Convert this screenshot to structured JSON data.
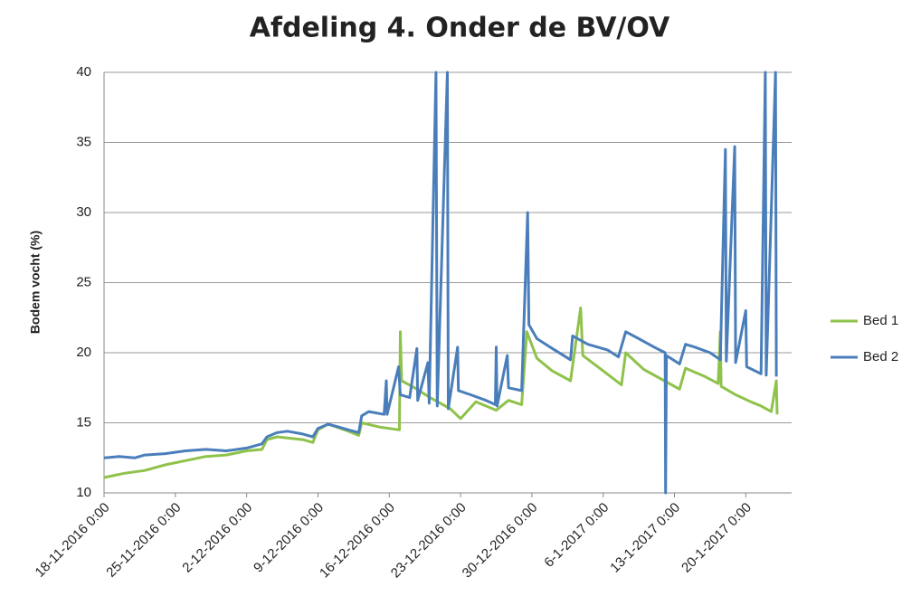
{
  "chart_data": {
    "type": "line",
    "title": "Afdeling 4. Onder de BV/OV",
    "y_label": "Bodem vocht (%)",
    "xlim": [
      "2016-11-18 00:00",
      "2017-01-24 12:00"
    ],
    "xticks": [
      {
        "value": "2016-11-18 00:00",
        "label": "18-11-2016 0:00"
      },
      {
        "value": "2016-11-25 00:00",
        "label": "25-11-2016 0:00"
      },
      {
        "value": "2016-12-02 00:00",
        "label": "2-12-2016 0:00"
      },
      {
        "value": "2016-12-09 00:00",
        "label": "9-12-2016 0:00"
      },
      {
        "value": "2016-12-16 00:00",
        "label": "16-12-2016 0:00"
      },
      {
        "value": "2016-12-23 00:00",
        "label": "23-12-2016 0:00"
      },
      {
        "value": "2016-12-30 00:00",
        "label": "30-12-2016 0:00"
      },
      {
        "value": "2017-01-06 00:00",
        "label": "6-1-2017 0:00"
      },
      {
        "value": "2017-01-13 00:00",
        "label": "13-1-2017 0:00"
      },
      {
        "value": "2017-01-20 00:00",
        "label": "20-1-2017 0:00"
      }
    ],
    "ylim": [
      10,
      40
    ],
    "yticks": [
      10,
      15,
      20,
      25,
      30,
      35,
      40
    ],
    "grid": true,
    "legend": "right",
    "series": [
      {
        "name": "Bed 1",
        "color": "#8fc24a",
        "x": [
          "2016-11-18 00:00",
          "2016-11-20 00:00",
          "2016-11-22 00:00",
          "2016-11-24 00:00",
          "2016-11-26 00:00",
          "2016-11-28 00:00",
          "2016-11-30 00:00",
          "2016-12-02 00:00",
          "2016-12-03 12:00",
          "2016-12-04 00:00",
          "2016-12-05 00:00",
          "2016-12-07 12:00",
          "2016-12-08 12:00",
          "2016-12-09 00:00",
          "2016-12-10 00:00",
          "2016-12-12 00:00",
          "2016-12-13 00:00",
          "2016-12-13 07:00",
          "2016-12-15 00:00",
          "2016-12-17 00:00",
          "2016-12-17 02:00",
          "2016-12-17 05:00",
          "2016-12-18 12:00",
          "2016-12-20 00:00",
          "2016-12-22 00:00",
          "2016-12-23 00:00",
          "2016-12-24 12:00",
          "2016-12-26 12:00",
          "2016-12-27 17:00",
          "2016-12-29 00:00",
          "2016-12-29 12:00",
          "2016-12-30 12:00",
          "2017-01-01 00:00",
          "2017-01-02 19:00",
          "2017-01-03 19:00",
          "2017-01-04 00:00",
          "2017-01-06 00:00",
          "2017-01-07 19:00",
          "2017-01-08 05:00",
          "2017-01-10 00:00",
          "2017-01-12 00:00",
          "2017-01-13 12:00",
          "2017-01-14 02:00",
          "2017-01-16 00:00",
          "2017-01-17 07:00",
          "2017-01-17 12:00",
          "2017-01-17 14:00",
          "2017-01-19 00:00",
          "2017-01-20 12:00",
          "2017-01-21 12:00",
          "2017-01-22 12:00",
          "2017-01-23 00:00",
          "2017-01-23 02:00"
        ],
        "values": [
          11.1,
          11.4,
          11.6,
          12.0,
          12.3,
          12.6,
          12.7,
          13.0,
          13.1,
          13.8,
          14.0,
          13.8,
          13.6,
          14.5,
          14.9,
          14.4,
          14.1,
          15.0,
          14.7,
          14.5,
          21.5,
          18.0,
          17.5,
          16.8,
          16.0,
          15.3,
          16.5,
          15.9,
          16.6,
          16.3,
          21.5,
          19.6,
          18.7,
          18.0,
          23.2,
          19.8,
          18.7,
          17.7,
          20.0,
          18.8,
          18.0,
          17.4,
          18.9,
          18.3,
          17.8,
          21.5,
          17.6,
          17.0,
          16.5,
          16.2,
          15.8,
          18.0,
          15.6
        ]
      },
      {
        "name": "Bed 2",
        "color": "#4a7ebb",
        "x": [
          "2016-11-18 00:00",
          "2016-11-19 12:00",
          "2016-11-21 00:00",
          "2016-11-22 00:00",
          "2016-11-24 00:00",
          "2016-11-26 00:00",
          "2016-11-28 00:00",
          "2016-11-30 00:00",
          "2016-12-02 00:00",
          "2016-12-03 12:00",
          "2016-12-04 00:00",
          "2016-12-05 00:00",
          "2016-12-06 00:00",
          "2016-12-07 12:00",
          "2016-12-08 12:00",
          "2016-12-09 00:00",
          "2016-12-10 00:00",
          "2016-12-11 00:00",
          "2016-12-12 00:00",
          "2016-12-13 00:00",
          "2016-12-13 07:00",
          "2016-12-14 00:00",
          "2016-12-15 12:00",
          "2016-12-15 17:00",
          "2016-12-15 19:00",
          "2016-12-16 22:00",
          "2016-12-17 02:00",
          "2016-12-18 00:00",
          "2016-12-18 17:00",
          "2016-12-18 19:00",
          "2016-12-19 19:00",
          "2016-12-19 22:00",
          "2016-12-20 14:00",
          "2016-12-20 17:00",
          "2016-12-21 17:00",
          "2016-12-21 19:00",
          "2016-12-22 17:00",
          "2016-12-22 19:00",
          "2016-12-24 00:00",
          "2016-12-25 12:00",
          "2016-12-26 10:00",
          "2016-12-26 12:00",
          "2016-12-26 14:00",
          "2016-12-27 14:00",
          "2016-12-27 17:00",
          "2016-12-29 00:00",
          "2016-12-29 14:00",
          "2016-12-29 17:00",
          "2016-12-30 12:00",
          "2017-01-01 00:00",
          "2017-01-02 19:00",
          "2017-01-03 00:00",
          "2017-01-04 12:00",
          "2017-01-06 10:00",
          "2017-01-07 12:00",
          "2017-01-08 05:00",
          "2017-01-09 12:00",
          "2017-01-11 00:00",
          "2017-01-12 02:00",
          "2017-01-12 03:00",
          "2017-01-12 05:00",
          "2017-01-13 12:00",
          "2017-01-14 02:00",
          "2017-01-15 00:00",
          "2017-01-16 12:00",
          "2017-01-17 12:00",
          "2017-01-18 00:00",
          "2017-01-18 02:00",
          "2017-01-18 22:00",
          "2017-01-19 00:00",
          "2017-01-20 00:00",
          "2017-01-20 02:00",
          "2017-01-21 12:00",
          "2017-01-21 22:00",
          "2017-01-22 00:00",
          "2017-01-22 22:00",
          "2017-01-23 00:00"
        ],
        "values": [
          12.5,
          12.6,
          12.5,
          12.7,
          12.8,
          13.0,
          13.1,
          13.0,
          13.2,
          13.5,
          14.0,
          14.3,
          14.4,
          14.2,
          14.0,
          14.6,
          14.9,
          14.7,
          14.5,
          14.3,
          15.5,
          15.8,
          15.6,
          18.0,
          15.6,
          19.0,
          17.0,
          16.8,
          20.3,
          16.6,
          19.3,
          16.4,
          40,
          16.2,
          40,
          16.0,
          20.4,
          17.3,
          17.0,
          16.6,
          16.3,
          20.4,
          16.2,
          19.8,
          17.5,
          17.3,
          30,
          22.0,
          21.0,
          20.3,
          19.5,
          21.2,
          20.6,
          20.2,
          19.7,
          21.5,
          21.0,
          20.4,
          20.0,
          10,
          19.8,
          19.2,
          20.6,
          20.4,
          20.0,
          19.5,
          34.5,
          19.4,
          34.7,
          19.3,
          23,
          19.0,
          18.5,
          40,
          18.4,
          40,
          18.3
        ]
      }
    ]
  }
}
